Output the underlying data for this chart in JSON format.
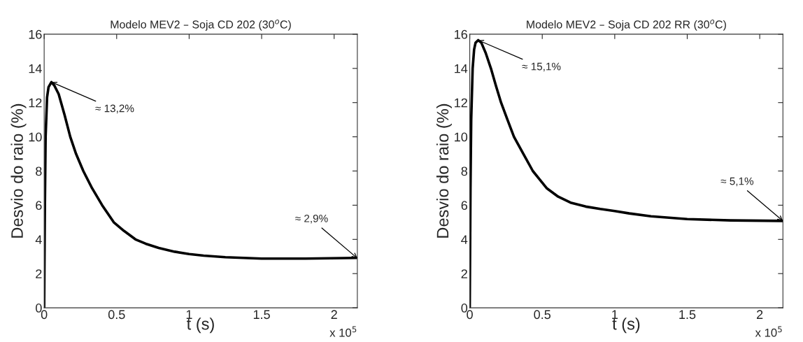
{
  "chart_data": [
    {
      "type": "line",
      "title": "Modelo MEV2 – Soja CD 202 (30$^{o}$C)",
      "xlabel": "t (s)",
      "ylabel": "Desvio do raio (%)",
      "x": [
        0,
        0.005,
        0.01,
        0.02,
        0.03,
        0.05,
        0.07,
        0.1,
        0.14,
        0.18,
        0.22,
        0.27,
        0.33,
        0.4,
        0.48,
        0.55,
        0.63,
        0.7,
        0.79,
        0.9,
        1,
        1.1,
        1.25,
        1.5,
        1.8,
        2.16
      ],
      "series": [
        {
          "color": "#000000",
          "values": [
            0,
            6,
            10,
            12.3,
            12.9,
            13.2,
            13.0,
            12.5,
            11.3,
            10,
            9,
            8,
            7,
            6,
            5,
            4.5,
            4,
            3.75,
            3.5,
            3.28,
            3.14,
            3.05,
            2.96,
            2.88,
            2.88,
            2.92
          ]
        }
      ],
      "xlim": [
        0,
        2.16
      ],
      "xticks": [
        0,
        0.5,
        1,
        1.5,
        2
      ],
      "ylim": [
        0,
        16
      ],
      "yticks": [
        0,
        2,
        4,
        6,
        8,
        10,
        12,
        14,
        16
      ],
      "grid": false,
      "legend": false,
      "annotations": [
        {
          "text": "≈ 13,2%",
          "x": 0.05,
          "y": 13.2
        },
        {
          "text": "≈ 2,9%",
          "x": 2.16,
          "y": 2.9
        },
        "x 10$^{5}$"
      ]
    },
    {
      "type": "line",
      "title": "Modelo MEV2 – Soja CD 202 RR (30$^{o}$C)",
      "xlabel": "t (s)",
      "ylabel": "Desvio do raio (%)",
      "x": [
        0,
        0.005,
        0.01,
        0.02,
        0.03,
        0.04,
        0.058,
        0.08,
        0.11,
        0.146,
        0.18,
        0.216,
        0.26,
        0.305,
        0.37,
        0.435,
        0.53,
        0.61,
        0.695,
        0.8,
        0.9,
        1,
        1.1,
        1.25,
        1.5,
        1.8,
        2.16
      ],
      "series": [
        {
          "color": "#000000",
          "values": [
            0,
            7,
            11,
            14,
            15.1,
            15.5,
            15.65,
            15.5,
            14.9,
            14,
            13,
            12,
            11,
            10,
            9,
            8,
            7,
            6.5,
            6.15,
            5.92,
            5.78,
            5.66,
            5.52,
            5.35,
            5.19,
            5.11,
            5.08
          ]
        }
      ],
      "xlim": [
        0,
        2.16
      ],
      "xticks": [
        0,
        0.5,
        1,
        1.5,
        2
      ],
      "ylim": [
        0,
        16
      ],
      "yticks": [
        0,
        2,
        4,
        6,
        8,
        10,
        12,
        14,
        16
      ],
      "grid": false,
      "legend": false,
      "annotations": [
        {
          "text": "≈ 15,1%",
          "x": 0.058,
          "y": 15.65
        },
        {
          "text": "≈ 5,1%",
          "x": 2.16,
          "y": 5.08
        },
        "x 10$^{5}$"
      ]
    }
  ]
}
